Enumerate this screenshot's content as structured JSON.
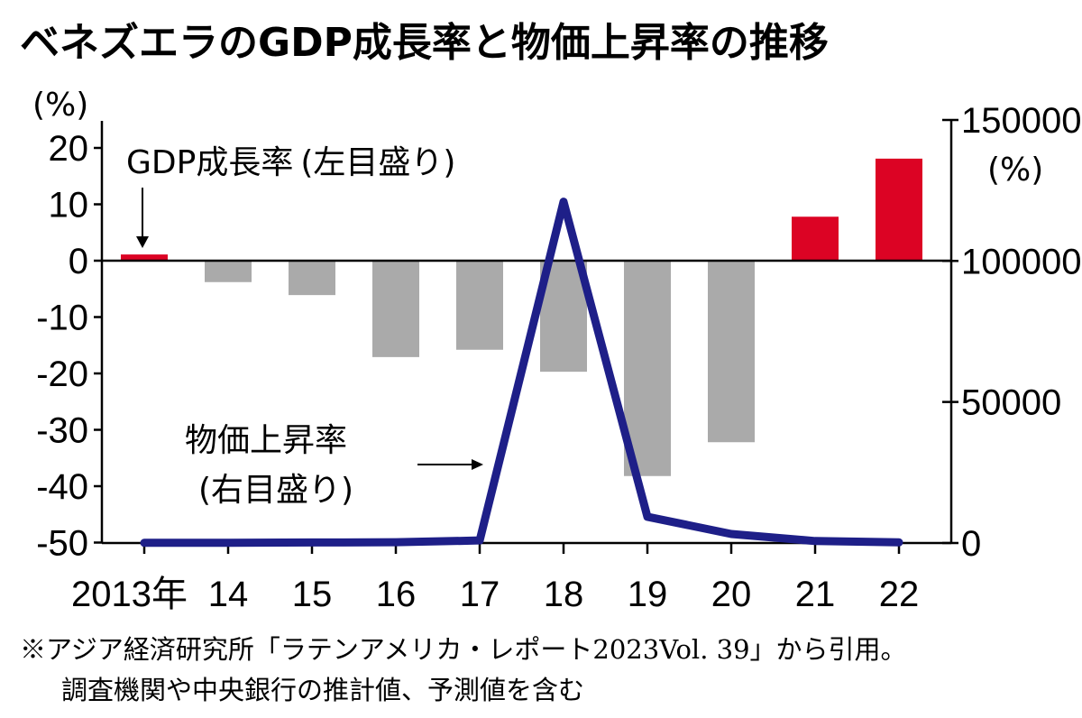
{
  "chart_data": {
    "type": "bar+line",
    "title": "ベネズエラのGDP成長率と物価上昇率の推移",
    "categories": [
      "2013年",
      "14",
      "15",
      "16",
      "17",
      "18",
      "19",
      "20",
      "21",
      "22"
    ],
    "series": [
      {
        "name": "GDP成長率",
        "axis": "left",
        "type": "bar",
        "values": [
          1.1,
          -3.8,
          -6.1,
          -17.1,
          -15.8,
          -19.7,
          -38.2,
          -32.2,
          7.8,
          18.1
        ]
      },
      {
        "name": "物価上昇率",
        "axis": "right",
        "type": "line",
        "values": [
          60,
          70,
          180,
          270,
          900,
          121000,
          9300,
          3200,
          700,
          250
        ]
      }
    ],
    "left_axis": {
      "unit": "(%)",
      "range": [
        -50,
        25
      ],
      "ticks": [
        20,
        10,
        0,
        -10,
        -20,
        -30,
        -40,
        -50
      ],
      "tick_labels": [
        "20",
        "10",
        "0",
        "-10",
        "-20",
        "-30",
        "-40",
        "-50"
      ]
    },
    "right_axis": {
      "unit": "(%)",
      "range": [
        0,
        150000
      ],
      "ticks": [
        150000,
        100000,
        50000,
        0
      ],
      "tick_labels": [
        "150000",
        "100000",
        "50000",
        "0"
      ]
    },
    "annotations": {
      "gdp_label": "GDP成長率",
      "gdp_sub": "(左目盛り)",
      "cpi_label": "物価上昇率",
      "cpi_sub": "(右目盛り)"
    },
    "colors": {
      "positive_bar": "#dc0324",
      "negative_bar": "#aaaaaa",
      "line": "#1e1f88"
    },
    "grid": false
  },
  "footnote": {
    "line1": "※アジア経済研究所「ラテンアメリカ・レポート2023Vol. 39」から引用。",
    "line2": "調査機関や中央銀行の推計値、予測値を含む"
  }
}
